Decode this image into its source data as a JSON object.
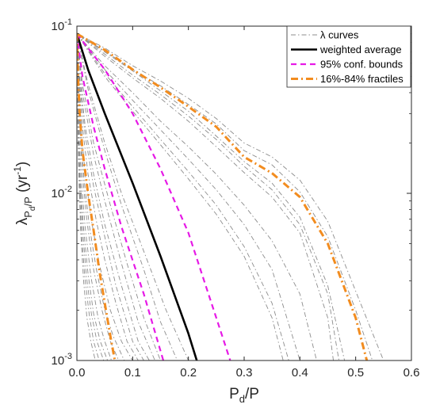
{
  "chart_data": {
    "type": "line",
    "title": "",
    "xlabel": {
      "main": "P",
      "sub": "d",
      "tail": "/P"
    },
    "ylabel": {
      "main": "λ",
      "sub": "P",
      "subsub": "d",
      "subtail": "/P",
      "tail": " (yr",
      "sup": "-1",
      "close": ")"
    },
    "xlim": [
      0,
      0.6
    ],
    "ylim": [
      0.001,
      0.1
    ],
    "yscale": "log",
    "xticks": [
      0,
      0.1,
      0.2,
      0.3,
      0.4,
      0.5,
      0.6
    ],
    "xtick_labels": [
      "0.0",
      "0.1",
      "0.2",
      "0.3",
      "0.4",
      "0.5",
      "0.6"
    ],
    "yticks": [
      {
        "value": 0.001,
        "base": "10",
        "exp": "-3"
      },
      {
        "value": 0.01,
        "base": "10",
        "exp": "-2"
      },
      {
        "value": 0.1,
        "base": "10",
        "exp": "-1"
      }
    ],
    "legend_position": "top-right",
    "legend": [
      {
        "label": "λ curves",
        "style": "dashdot",
        "color": "#8c8c8c"
      },
      {
        "label": "weighted average",
        "style": "solid",
        "color": "#000000"
      },
      {
        "label": "95% conf. bounds",
        "style": "dashed",
        "color": "#e619e6"
      },
      {
        "label": "16%-84% fractiles",
        "style": "dashdot",
        "color": "#f28c1f"
      }
    ],
    "series": [
      {
        "role": "weighted average",
        "color": "#000000",
        "style": "solid",
        "x": [
          0,
          0.02,
          0.05,
          0.1,
          0.15,
          0.2,
          0.215
        ],
        "y": [
          0.09,
          0.055,
          0.03,
          0.0115,
          0.0042,
          0.00145,
          0.001
        ]
      },
      {
        "role": "95% conf. bounds",
        "color": "#e619e6",
        "style": "dashed",
        "x": [
          0,
          0.05,
          0.1,
          0.15,
          0.2,
          0.25,
          0.275
        ],
        "y": [
          0.09,
          0.055,
          0.03,
          0.014,
          0.0058,
          0.0018,
          0.001
        ]
      },
      {
        "role": "95% conf. bounds",
        "color": "#e619e6",
        "style": "dashed",
        "x": [
          0,
          0.01,
          0.03,
          0.05,
          0.08,
          0.12,
          0.155
        ],
        "y": [
          0.09,
          0.05,
          0.025,
          0.014,
          0.0063,
          0.0025,
          0.001
        ]
      },
      {
        "role": "16%-84% fractiles",
        "color": "#f28c1f",
        "style": "dashdot",
        "x": [
          0,
          0.05,
          0.1,
          0.15,
          0.2,
          0.25,
          0.3,
          0.35,
          0.4,
          0.45,
          0.5,
          0.52
        ],
        "y": [
          0.09,
          0.072,
          0.055,
          0.043,
          0.033,
          0.025,
          0.0165,
          0.0132,
          0.0095,
          0.005,
          0.0018,
          0.001
        ]
      },
      {
        "role": "16%-84% fractiles",
        "color": "#f28c1f",
        "style": "dashdot",
        "x": [
          0,
          0.002,
          0.005,
          0.01,
          0.02,
          0.03,
          0.04,
          0.05,
          0.06,
          0.068
        ],
        "y": [
          0.09,
          0.05,
          0.03,
          0.018,
          0.01,
          0.006,
          0.0035,
          0.0022,
          0.0014,
          0.001
        ]
      },
      {
        "role": "λ curves",
        "color": "#8c8c8c",
        "style": "dashdot",
        "x": [
          0,
          0.05,
          0.1,
          0.15,
          0.2,
          0.25,
          0.3,
          0.35,
          0.4,
          0.45,
          0.5,
          0.55
        ],
        "y": [
          0.09,
          0.074,
          0.058,
          0.047,
          0.037,
          0.028,
          0.02,
          0.0165,
          0.012,
          0.0068,
          0.0026,
          0.001
        ]
      },
      {
        "role": "λ curves",
        "color": "#8c8c8c",
        "style": "dashdot",
        "x": [
          0,
          0.05,
          0.1,
          0.15,
          0.2,
          0.25,
          0.3,
          0.35,
          0.4,
          0.45,
          0.5,
          0.53
        ],
        "y": [
          0.09,
          0.071,
          0.055,
          0.044,
          0.034,
          0.026,
          0.018,
          0.0148,
          0.0102,
          0.0055,
          0.002,
          0.001
        ]
      },
      {
        "role": "λ curves",
        "color": "#8c8c8c",
        "style": "dashdot",
        "x": [
          0,
          0.05,
          0.1,
          0.15,
          0.2,
          0.25,
          0.3,
          0.35,
          0.4,
          0.45,
          0.48
        ],
        "y": [
          0.09,
          0.07,
          0.054,
          0.041,
          0.031,
          0.022,
          0.0155,
          0.0115,
          0.0072,
          0.0028,
          0.001
        ]
      },
      {
        "role": "λ curves",
        "color": "#8c8c8c",
        "style": "dashdot",
        "x": [
          0,
          0.05,
          0.1,
          0.15,
          0.2,
          0.25,
          0.3,
          0.35,
          0.4,
          0.45,
          0.47
        ],
        "y": [
          0.09,
          0.068,
          0.051,
          0.039,
          0.029,
          0.021,
          0.0145,
          0.0105,
          0.0065,
          0.0025,
          0.001
        ]
      },
      {
        "role": "λ curves",
        "color": "#8c8c8c",
        "style": "dashdot",
        "x": [
          0,
          0.05,
          0.1,
          0.15,
          0.2,
          0.25,
          0.3,
          0.35,
          0.4,
          0.45,
          0.46
        ],
        "y": [
          0.09,
          0.066,
          0.049,
          0.037,
          0.027,
          0.019,
          0.0133,
          0.0095,
          0.0058,
          0.0018,
          0.001
        ]
      },
      {
        "role": "λ curves",
        "color": "#8c8c8c",
        "style": "dashdot",
        "x": [
          0,
          0.05,
          0.1,
          0.15,
          0.2,
          0.25,
          0.3,
          0.35,
          0.4,
          0.43
        ],
        "y": [
          0.09,
          0.058,
          0.04,
          0.027,
          0.019,
          0.013,
          0.0085,
          0.0052,
          0.0025,
          0.001
        ]
      },
      {
        "role": "λ curves",
        "color": "#8c8c8c",
        "style": "dashdot",
        "x": [
          0,
          0.05,
          0.1,
          0.15,
          0.2,
          0.25,
          0.3,
          0.35,
          0.4
        ],
        "y": [
          0.09,
          0.055,
          0.036,
          0.024,
          0.016,
          0.0105,
          0.0065,
          0.0035,
          0.001
        ]
      },
      {
        "role": "λ curves",
        "color": "#8c8c8c",
        "style": "dashdot",
        "x": [
          0,
          0.05,
          0.1,
          0.15,
          0.2,
          0.25,
          0.3,
          0.35,
          0.38
        ],
        "y": [
          0.09,
          0.052,
          0.033,
          0.021,
          0.0135,
          0.0085,
          0.0048,
          0.0022,
          0.001
        ]
      },
      {
        "role": "λ curves",
        "color": "#8c8c8c",
        "style": "dashdot",
        "x": [
          0,
          0.05,
          0.1,
          0.15,
          0.2,
          0.25,
          0.3,
          0.35,
          0.37
        ],
        "y": [
          0.09,
          0.05,
          0.031,
          0.0195,
          0.0122,
          0.0075,
          0.0042,
          0.0018,
          0.001
        ]
      },
      {
        "role": "λ curves",
        "color": "#8c8c8c",
        "style": "dashdot",
        "x": [
          0,
          0.02,
          0.05,
          0.08,
          0.12,
          0.16,
          0.2
        ],
        "y": [
          0.09,
          0.045,
          0.02,
          0.01,
          0.0045,
          0.002,
          0.001
        ]
      },
      {
        "role": "λ curves",
        "color": "#8c8c8c",
        "style": "dashdot",
        "x": [
          0,
          0.02,
          0.05,
          0.08,
          0.12,
          0.15,
          0.18
        ],
        "y": [
          0.09,
          0.042,
          0.018,
          0.0085,
          0.0035,
          0.0017,
          0.001
        ]
      },
      {
        "role": "λ curves",
        "color": "#8c8c8c",
        "style": "dashdot",
        "x": [
          0,
          0.01,
          0.03,
          0.06,
          0.09,
          0.12,
          0.15
        ],
        "y": [
          0.09,
          0.045,
          0.02,
          0.0085,
          0.0038,
          0.0018,
          0.001
        ]
      },
      {
        "role": "λ curves",
        "color": "#8c8c8c",
        "style": "dashdot",
        "x": [
          0,
          0.01,
          0.03,
          0.05,
          0.08,
          0.11,
          0.14
        ],
        "y": [
          0.09,
          0.04,
          0.017,
          0.009,
          0.0038,
          0.0017,
          0.001
        ]
      },
      {
        "role": "λ curves",
        "color": "#8c8c8c",
        "style": "dashdot",
        "x": [
          0,
          0.005,
          0.015,
          0.03,
          0.05,
          0.08,
          0.11,
          0.13
        ],
        "y": [
          0.09,
          0.05,
          0.025,
          0.013,
          0.0065,
          0.0028,
          0.0013,
          0.001
        ]
      },
      {
        "role": "λ curves",
        "color": "#8c8c8c",
        "style": "dashdot",
        "x": [
          0,
          0.005,
          0.015,
          0.03,
          0.05,
          0.07,
          0.1,
          0.12
        ],
        "y": [
          0.09,
          0.045,
          0.022,
          0.011,
          0.0055,
          0.0028,
          0.0013,
          0.001
        ]
      },
      {
        "role": "λ curves",
        "color": "#8c8c8c",
        "style": "dashdot",
        "x": [
          0,
          0.004,
          0.01,
          0.02,
          0.035,
          0.05,
          0.07,
          0.09,
          0.11
        ],
        "y": [
          0.09,
          0.045,
          0.025,
          0.013,
          0.0068,
          0.004,
          0.0022,
          0.0013,
          0.001
        ]
      },
      {
        "role": "λ curves",
        "color": "#8c8c8c",
        "style": "dashdot",
        "x": [
          0,
          0.003,
          0.008,
          0.015,
          0.025,
          0.04,
          0.06,
          0.08,
          0.1
        ],
        "y": [
          0.09,
          0.045,
          0.024,
          0.013,
          0.0072,
          0.0038,
          0.002,
          0.0013,
          0.001
        ]
      },
      {
        "role": "λ curves",
        "color": "#8c8c8c",
        "style": "dashdot",
        "x": [
          0,
          0.003,
          0.007,
          0.013,
          0.022,
          0.035,
          0.05,
          0.065,
          0.085
        ],
        "y": [
          0.09,
          0.042,
          0.022,
          0.012,
          0.0065,
          0.0035,
          0.002,
          0.0014,
          0.001
        ]
      },
      {
        "role": "λ curves",
        "color": "#8c8c8c",
        "style": "dashdot",
        "x": [
          0,
          0.002,
          0.005,
          0.01,
          0.018,
          0.03,
          0.045,
          0.06,
          0.075
        ],
        "y": [
          0.09,
          0.045,
          0.024,
          0.013,
          0.0068,
          0.0035,
          0.002,
          0.0013,
          0.001
        ]
      },
      {
        "role": "λ curves",
        "color": "#8c8c8c",
        "style": "dashdot",
        "x": [
          0,
          0.002,
          0.004,
          0.008,
          0.015,
          0.025,
          0.038,
          0.05,
          0.062
        ],
        "y": [
          0.09,
          0.04,
          0.022,
          0.012,
          0.0062,
          0.0032,
          0.0018,
          0.0013,
          0.001
        ]
      },
      {
        "role": "λ curves",
        "color": "#8c8c8c",
        "style": "dashdot",
        "x": [
          0,
          0.001,
          0.003,
          0.006,
          0.012,
          0.02,
          0.03,
          0.042,
          0.055
        ],
        "y": [
          0.09,
          0.045,
          0.022,
          0.012,
          0.0062,
          0.0033,
          0.0019,
          0.0013,
          0.001
        ]
      },
      {
        "role": "λ curves",
        "color": "#8c8c8c",
        "style": "dashdot",
        "x": [
          0,
          0.001,
          0.003,
          0.005,
          0.01,
          0.017,
          0.026,
          0.036,
          0.048
        ],
        "y": [
          0.09,
          0.04,
          0.02,
          0.012,
          0.0062,
          0.0032,
          0.0019,
          0.0013,
          0.001
        ]
      },
      {
        "role": "λ curves",
        "color": "#8c8c8c",
        "style": "dashdot",
        "x": [
          0,
          0.001,
          0.002,
          0.004,
          0.008,
          0.014,
          0.022,
          0.03,
          0.04
        ],
        "y": [
          0.09,
          0.045,
          0.024,
          0.012,
          0.006,
          0.0032,
          0.0019,
          0.0013,
          0.001
        ]
      },
      {
        "role": "λ curves",
        "color": "#8c8c8c",
        "style": "dashdot",
        "x": [
          0,
          0.001,
          0.002,
          0.004,
          0.007,
          0.012,
          0.018,
          0.025,
          0.033
        ],
        "y": [
          0.09,
          0.04,
          0.022,
          0.011,
          0.0058,
          0.003,
          0.0018,
          0.0013,
          0.001
        ]
      }
    ]
  }
}
